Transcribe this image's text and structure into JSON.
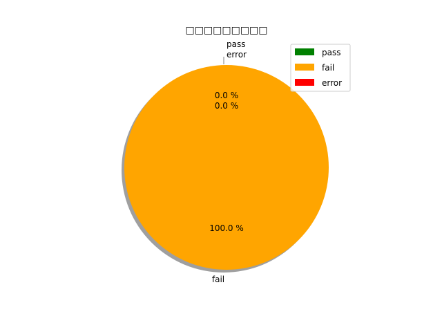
{
  "chart_data": {
    "type": "pie",
    "title": "",
    "title_render": "□□□□□□□□□",
    "title_note_unrendered_glyphs": true,
    "labels": [
      "pass",
      "fail",
      "error"
    ],
    "values": [
      0,
      100,
      0
    ],
    "percent_labels": [
      "0.0 %",
      "100.0 %",
      "0.0 %"
    ],
    "colors": [
      "#008000",
      "#FFA500",
      "#FF0000"
    ],
    "shadow": true,
    "legend": {
      "placement": "upper-right",
      "entries": [
        "pass",
        "fail",
        "error"
      ]
    }
  }
}
